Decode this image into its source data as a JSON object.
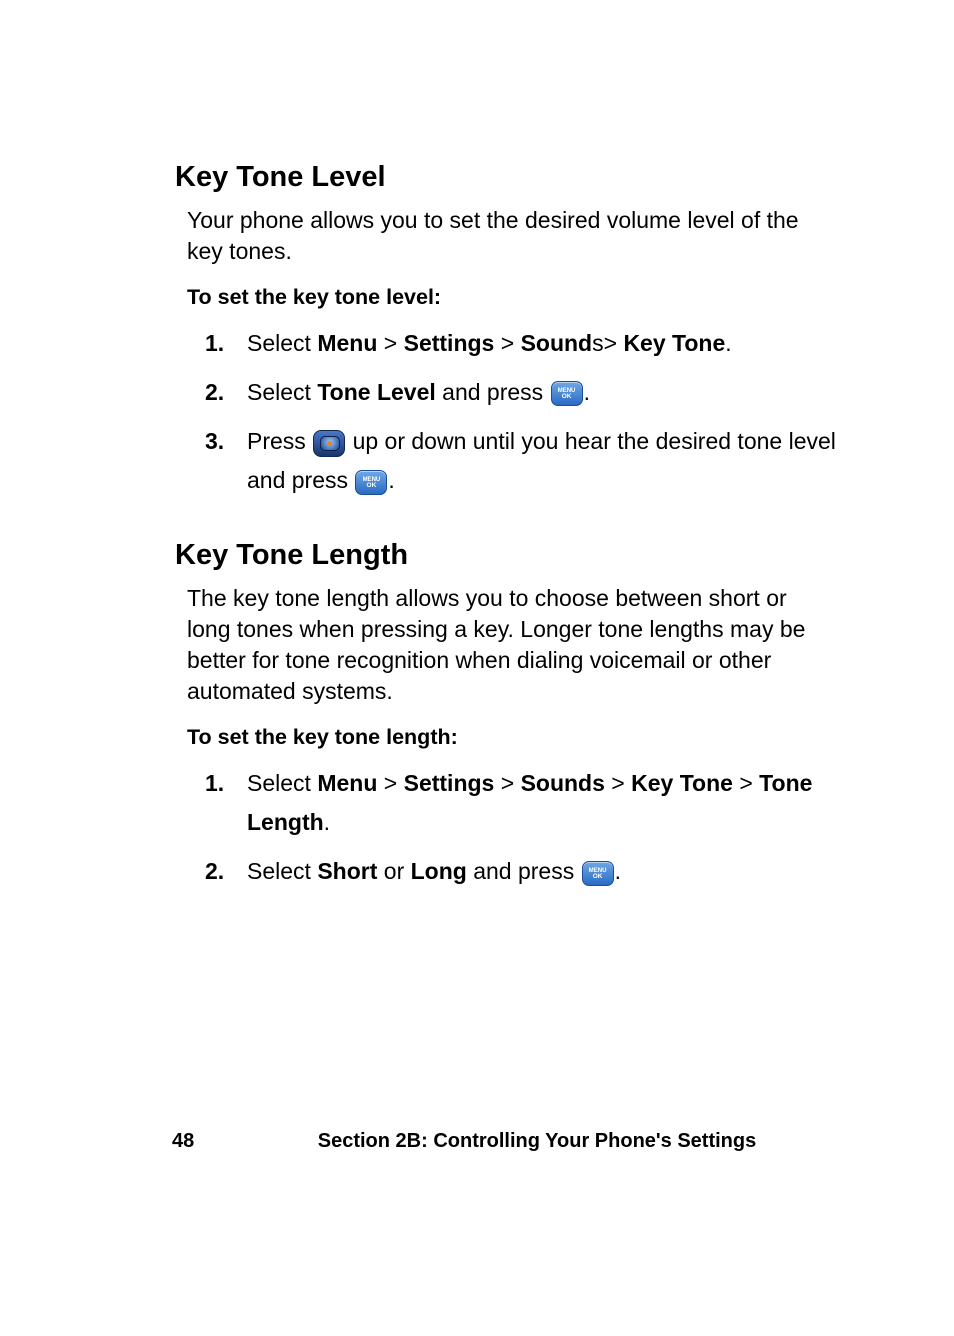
{
  "section1": {
    "heading": "Key Tone Level",
    "intro": "Your phone allows you to set the desired volume level of the key tones.",
    "subhead": "To set the key tone level:",
    "steps": {
      "s1": {
        "num": "1.",
        "pre": "Select ",
        "b1": "Menu",
        "sep1": " > ",
        "b2": "Settings",
        "sep2": " > ",
        "b3": "Sound",
        "tail_plain": "s> ",
        "b4": "Key Tone",
        "end": "."
      },
      "s2": {
        "num": "2.",
        "pre": "Select ",
        "b1": "Tone Level",
        "mid": " and press ",
        "end": "."
      },
      "s3": {
        "num": "3.",
        "pre": "Press ",
        "mid": " up or down until you hear the desired tone level and press ",
        "end": "."
      }
    }
  },
  "section2": {
    "heading": "Key Tone Length",
    "intro": "The key tone length allows you to choose between short or long tones when pressing a key. Longer tone lengths may be better for tone recognition when dialing voicemail or other automated systems.",
    "subhead": "To set the key tone length:",
    "steps": {
      "s1": {
        "num": "1.",
        "pre": "Select ",
        "b1": "Menu",
        "sep1": " > ",
        "b2": "Settings",
        "sep2": " > ",
        "b3": "Sounds",
        "sep3": " > ",
        "b4": "Key Tone",
        "sep4": " > ",
        "b5": "Tone Length",
        "end": "."
      },
      "s2": {
        "num": "2.",
        "pre": "Select ",
        "b1": "Short",
        "mid1": " or ",
        "b2": "Long",
        "mid2": " and press ",
        "end": "."
      }
    }
  },
  "footer": {
    "page": "48",
    "section": "Section 2B: Controlling Your Phone's Settings"
  }
}
